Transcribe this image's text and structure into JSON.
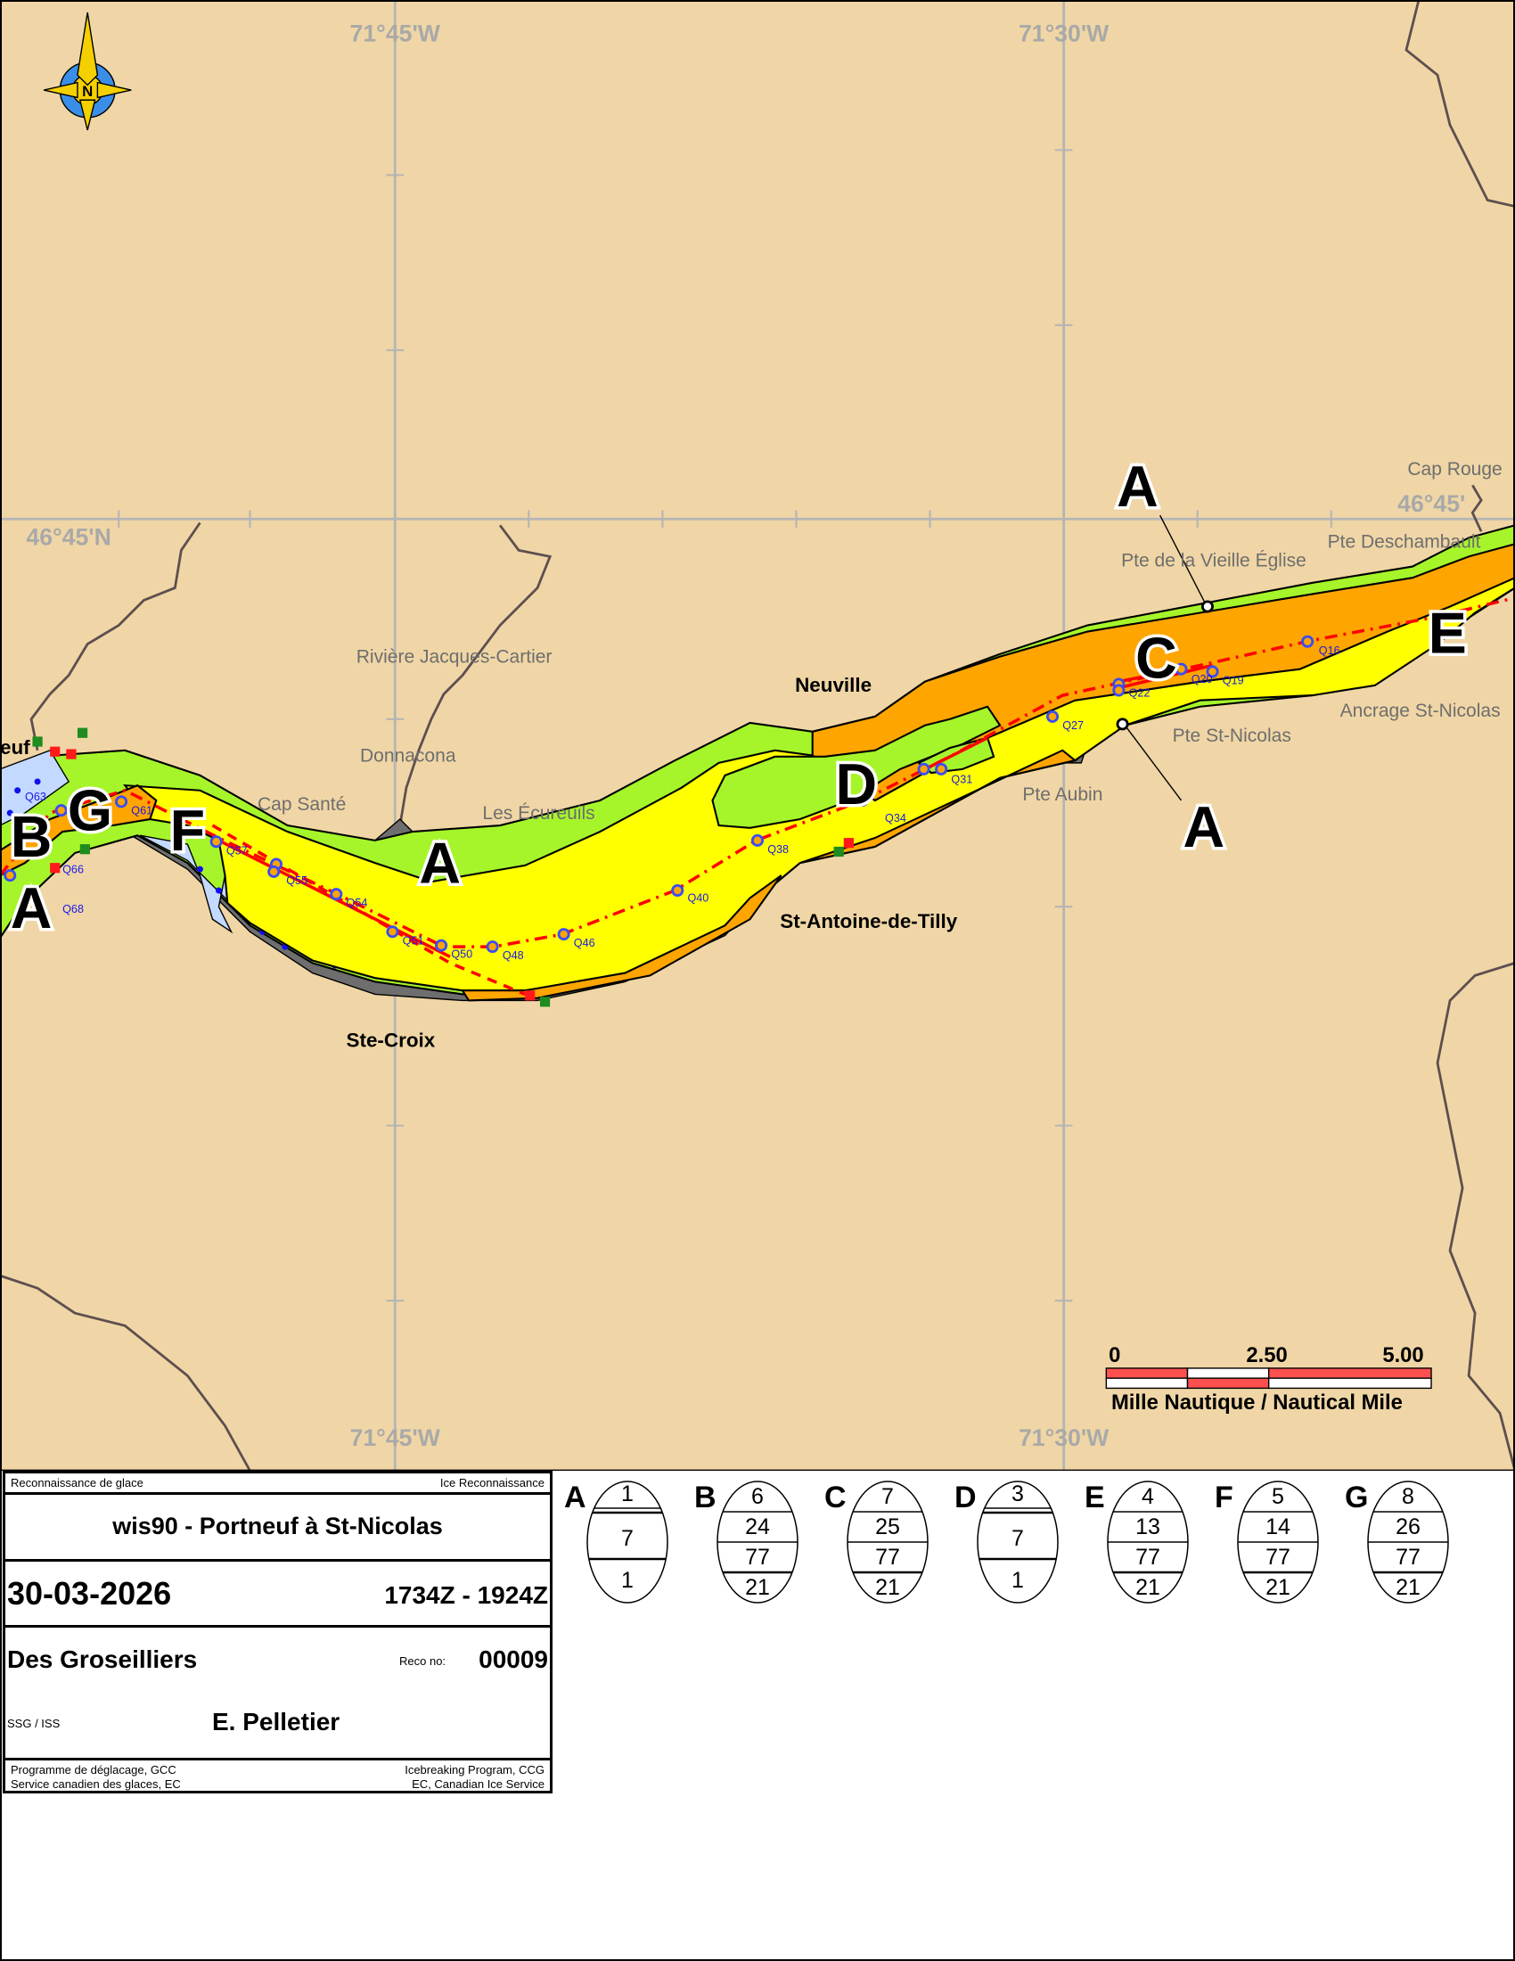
{
  "map": {
    "grid_labels": {
      "lon_left": "71°45'W",
      "lon_right": "71°30'W",
      "lat": "46°45'N",
      "lat_right": "46°45'"
    },
    "compass_label": "N",
    "places": {
      "riviere_jacques_cartier": "Rivière Jacques-Cartier",
      "donnacona": "Donnacona",
      "cap_sante": "Cap Santé",
      "les_ecureuils": "Les Écureuils",
      "neuville": "Neuville",
      "st_antoine": "St-Antoine-de-Tilly",
      "ste_croix": "Ste-Croix",
      "pte_aubin": "Pte Aubin",
      "pte_st_nicolas": "Pte St-Nicolas",
      "ancrage_st_nicolas": "Ancrage St-Nicolas",
      "pte_vieille_eglise": "Pte de la Vieille Église",
      "pte_deschambault": "Pte Deschambault",
      "cap_rouge": "Cap Rouge",
      "portneuf_partial": "euf"
    },
    "zone_labels": [
      "A",
      "A",
      "A",
      "A",
      "B",
      "C",
      "D",
      "E",
      "F",
      "G"
    ],
    "waypoints": [
      "Q16",
      "Q19",
      "Q20",
      "Q22",
      "Q27",
      "Q31",
      "Q34",
      "Q38",
      "Q40",
      "Q46",
      "Q48",
      "Q50",
      "Q51",
      "Q54",
      "Q55",
      "Q57",
      "Q61",
      "Q63",
      "Q66",
      "Q68"
    ],
    "colors": {
      "land": "#f0d6a6",
      "river_green": "#a6f52a",
      "yellow": "#ffff00",
      "orange": "#ffa500",
      "blue_zone": "#c4d9ff",
      "shore": "#6e6e6e",
      "track": "#ff0000",
      "waypoint": "#3a4df5"
    },
    "scale": {
      "ticks": [
        "0",
        "2.50",
        "5.00"
      ],
      "unit": "Mille Nautique / Nautical Mile",
      "color": "#ff5050"
    }
  },
  "info": {
    "header_fr": "Reconnaissance de glace",
    "header_en": "Ice Reconnaissance",
    "title": "wis90 - Portneuf à St-Nicolas",
    "date": "30-03-2026",
    "time": "1734Z - 1924Z",
    "ship": "Des Groseilliers",
    "reco_label": "Reco no:",
    "reco_no": "00009",
    "ssg_label": "SSG / ISS",
    "observer": "E. Pelletier",
    "footer_fr_1": "Programme de déglacage, GCC",
    "footer_fr_2": "Service canadien des glaces, EC",
    "footer_en_1": "Icebreaking Program, CCG",
    "footer_en_2": "EC, Canadian Ice Service"
  },
  "egg_codes": [
    {
      "label": "A",
      "rows": [
        "1",
        "7",
        "1"
      ]
    },
    {
      "label": "B",
      "rows": [
        "6",
        "24",
        "77",
        "21"
      ]
    },
    {
      "label": "C",
      "rows": [
        "7",
        "25",
        "77",
        "21"
      ]
    },
    {
      "label": "D",
      "rows": [
        "3",
        "7",
        "1"
      ]
    },
    {
      "label": "E",
      "rows": [
        "4",
        "13",
        "77",
        "21"
      ]
    },
    {
      "label": "F",
      "rows": [
        "5",
        "14",
        "77",
        "21"
      ]
    },
    {
      "label": "G",
      "rows": [
        "8",
        "26",
        "77",
        "21"
      ]
    }
  ]
}
